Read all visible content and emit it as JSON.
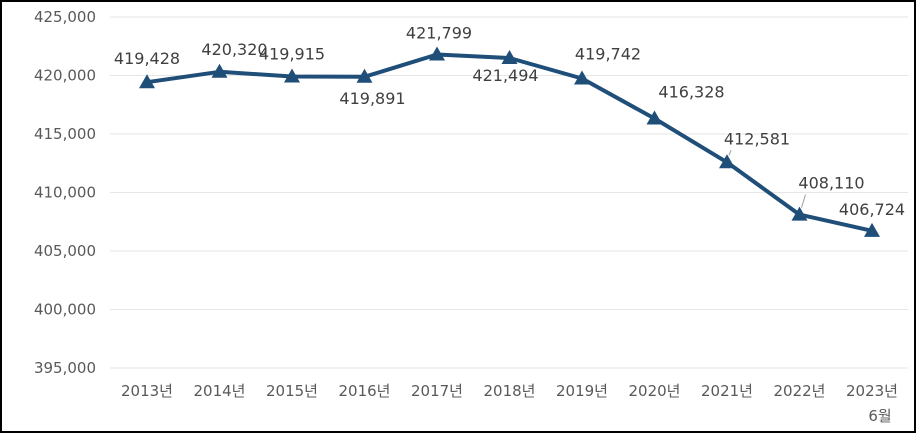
{
  "chart_data": {
    "type": "line",
    "title": "",
    "xlabel": "",
    "ylabel": "",
    "categories": [
      "2013년",
      "2014년",
      "2015년",
      "2016년",
      "2017년",
      "2018년",
      "2019년",
      "2020년",
      "2021년",
      "2022년",
      "2023년"
    ],
    "category_sublabels": [
      "",
      "",
      "",
      "",
      "",
      "",
      "",
      "",
      "",
      "",
      "6월"
    ],
    "values": [
      419428,
      420320,
      419915,
      419891,
      421799,
      421494,
      419742,
      416328,
      412581,
      408110,
      406724
    ],
    "data_labels": [
      "419,428",
      "420,320",
      "419,915",
      "419,891",
      "421,799",
      "421,494",
      "419,742",
      "416,328",
      "412,581",
      "408,110",
      "406,724"
    ],
    "ylim": [
      395000,
      425000
    ],
    "y_ticks": [
      "395,000",
      "400,000",
      "405,000",
      "410,000",
      "415,000",
      "420,000",
      "425,000"
    ],
    "grid": true,
    "legend": "none",
    "marker": "triangle",
    "colors": {
      "line": "#1f4e79",
      "grid": "#e6e6e6",
      "tick_text": "#595959",
      "label_text": "#404040",
      "frame": "#000000"
    }
  }
}
